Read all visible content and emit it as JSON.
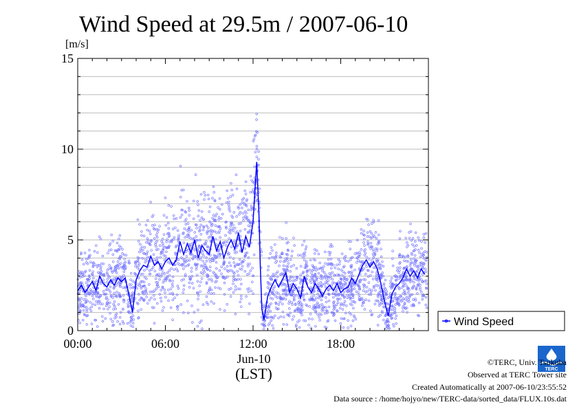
{
  "chart_data": {
    "type": "line",
    "title": "Wind Speed at 29.5m / 2007-06-10",
    "ylabel": "[m/s]",
    "ylim": [
      0,
      15
    ],
    "yticks": [
      "0",
      "5",
      "10",
      "15"
    ],
    "xlim_hours": [
      0,
      24
    ],
    "xticks": [
      "00:00",
      "06:00",
      "12:00",
      "18:00"
    ],
    "xtick_values": [
      0,
      6,
      12,
      18
    ],
    "date_label": "Jun-10",
    "xlabel": "(LST)",
    "grid": "horizontal",
    "legend": {
      "position": "right",
      "label": "Wind Speed"
    },
    "series": [
      {
        "name": "Wind Speed",
        "color": "#0000ff",
        "style": "line with scattered 10-second samples",
        "x_hours": [
          0.0,
          0.25,
          0.5,
          0.75,
          1.0,
          1.25,
          1.5,
          1.75,
          2.0,
          2.25,
          2.5,
          2.75,
          3.0,
          3.25,
          3.5,
          3.75,
          4.0,
          4.25,
          4.5,
          4.75,
          5.0,
          5.25,
          5.5,
          5.75,
          6.0,
          6.25,
          6.5,
          6.75,
          7.0,
          7.25,
          7.5,
          7.75,
          8.0,
          8.25,
          8.5,
          8.75,
          9.0,
          9.25,
          9.5,
          9.75,
          10.0,
          10.25,
          10.5,
          10.75,
          11.0,
          11.25,
          11.5,
          11.75,
          12.0,
          12.25,
          12.4,
          12.5,
          12.6,
          12.75,
          13.0,
          13.25,
          13.5,
          13.75,
          14.0,
          14.25,
          14.5,
          14.75,
          15.0,
          15.25,
          15.5,
          15.75,
          16.0,
          16.25,
          16.5,
          16.75,
          17.0,
          17.25,
          17.5,
          17.75,
          18.0,
          18.25,
          18.5,
          18.75,
          19.0,
          19.25,
          19.5,
          19.75,
          20.0,
          20.25,
          20.5,
          20.75,
          21.0,
          21.25,
          21.5,
          21.75,
          22.0,
          22.25,
          22.5,
          22.75,
          23.0,
          23.25,
          23.5,
          23.75
        ],
        "values": [
          2.2,
          2.5,
          2.1,
          2.4,
          2.7,
          2.2,
          3.0,
          2.6,
          2.4,
          2.8,
          2.5,
          2.9,
          2.7,
          2.9,
          2.0,
          1.0,
          2.8,
          3.3,
          3.6,
          3.5,
          4.1,
          3.6,
          3.8,
          3.4,
          3.8,
          4.0,
          3.6,
          3.9,
          4.9,
          4.2,
          4.8,
          4.3,
          5.0,
          4.0,
          4.7,
          4.4,
          4.2,
          5.2,
          4.4,
          4.9,
          4.0,
          4.6,
          5.0,
          4.5,
          5.4,
          4.3,
          5.2,
          4.6,
          6.0,
          9.3,
          6.5,
          3.5,
          1.2,
          0.6,
          1.9,
          2.4,
          2.8,
          2.4,
          2.8,
          3.2,
          2.1,
          2.6,
          2.3,
          1.8,
          3.0,
          2.4,
          2.1,
          2.6,
          2.3,
          1.9,
          2.3,
          2.5,
          2.2,
          2.6,
          2.1,
          2.3,
          2.4,
          2.9,
          2.6,
          3.1,
          3.6,
          3.9,
          3.5,
          3.8,
          3.4,
          2.6,
          1.6,
          0.8,
          2.0,
          2.4,
          2.6,
          2.9,
          3.4,
          3.0,
          3.3,
          2.9,
          3.4,
          3.1
        ]
      }
    ]
  },
  "footer": {
    "line1": "©TERC, Univ. Tsukuba",
    "line2": "Observed at TERC Tower site",
    "line3": "Created Automatically at 2007-06-10/23:55:52",
    "line4": "Data source : /home/hojyo/new/TERC-data/sorted_data/FLUX.10s.dat"
  },
  "logo": {
    "label": "TERC",
    "color": "#1a66cc"
  }
}
